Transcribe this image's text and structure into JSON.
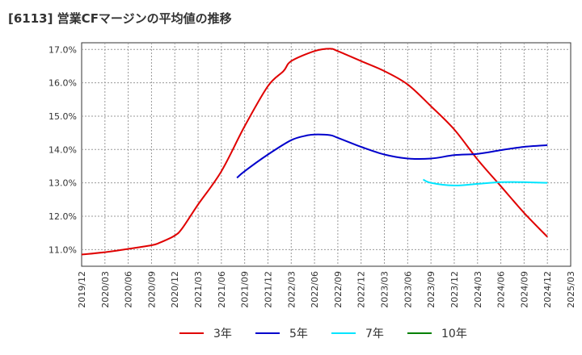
{
  "chart_data": {
    "type": "line",
    "title": "[6113]  営業CFマージンの平均値の推移",
    "xlabel": "",
    "ylabel": "",
    "x": [
      "2019/12",
      "2020/03",
      "2020/06",
      "2020/09",
      "2020/12",
      "2021/03",
      "2021/06",
      "2021/09",
      "2021/12",
      "2022/03",
      "2022/06",
      "2022/09",
      "2022/12",
      "2023/03",
      "2023/06",
      "2023/09",
      "2023/12",
      "2024/03",
      "2024/06",
      "2024/09",
      "2024/12",
      "2025/03"
    ],
    "ylim": [
      10.5,
      17.2
    ],
    "yticks": [
      11.0,
      12.0,
      13.0,
      14.0,
      15.0,
      16.0,
      17.0
    ],
    "ytick_labels": [
      "11.0%",
      "12.0%",
      "13.0%",
      "14.0%",
      "15.0%",
      "16.0%",
      "17.0%"
    ],
    "grid": true,
    "legend_position": "bottom",
    "series": [
      {
        "name": "3年",
        "color": "#e00000",
        "x": [
          "2019/12",
          "2020/03",
          "2020/06",
          "2020/09",
          "2020/10",
          "2020/12",
          "2021/01",
          "2021/03",
          "2021/06",
          "2021/09",
          "2021/12",
          "2022/02",
          "2022/03",
          "2022/06",
          "2022/08",
          "2022/09",
          "2022/12",
          "2023/03",
          "2023/06",
          "2023/09",
          "2023/12",
          "2024/03",
          "2024/06",
          "2024/09",
          "2024/12"
        ],
        "values": [
          10.85,
          10.92,
          11.02,
          11.13,
          11.2,
          11.42,
          11.65,
          12.35,
          13.35,
          14.7,
          15.9,
          16.35,
          16.65,
          16.95,
          17.02,
          16.95,
          16.65,
          16.35,
          15.95,
          15.3,
          14.6,
          13.7,
          12.9,
          12.1,
          11.38
        ]
      },
      {
        "name": "5年",
        "color": "#0000cc",
        "x": [
          "2021/08",
          "2021/09",
          "2021/12",
          "2022/03",
          "2022/05",
          "2022/06",
          "2022/08",
          "2022/09",
          "2022/12",
          "2023/03",
          "2023/06",
          "2023/09",
          "2023/12",
          "2024/03",
          "2024/06",
          "2024/09",
          "2024/12"
        ],
        "values": [
          13.15,
          13.35,
          13.85,
          14.28,
          14.42,
          14.45,
          14.43,
          14.35,
          14.08,
          13.85,
          13.73,
          13.73,
          13.83,
          13.87,
          13.98,
          14.08,
          14.13
        ]
      },
      {
        "name": "7年",
        "color": "#00e5ff",
        "x": [
          "2023/08",
          "2023/09",
          "2023/12",
          "2024/03",
          "2024/06",
          "2024/09",
          "2024/12"
        ],
        "values": [
          13.1,
          13.0,
          12.92,
          12.97,
          13.02,
          13.02,
          13.0
        ]
      },
      {
        "name": "10年",
        "color": "#008000",
        "x": [],
        "values": []
      }
    ]
  }
}
